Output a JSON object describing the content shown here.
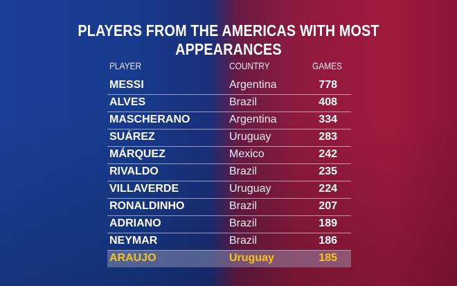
{
  "title": "PLAYERS FROM THE AMERICAS WITH MOST APPEARANCES",
  "colors": {
    "highlight": "#f5c518",
    "blue": "#1a3f96",
    "red": "#a01a3c"
  },
  "chart_data": {
    "type": "table",
    "title": "PLAYERS FROM THE AMERICAS WITH MOST APPEARANCES",
    "columns": [
      "PLAYER",
      "COUNTRY",
      "GAMES"
    ],
    "rows": [
      {
        "player": "MESSI",
        "country": "Argentina",
        "games": 778
      },
      {
        "player": "ALVES",
        "country": "Brazil",
        "games": 408
      },
      {
        "player": "MASCHERANO",
        "country": "Argentina",
        "games": 334
      },
      {
        "player": "SUÁREZ",
        "country": "Uruguay",
        "games": 283
      },
      {
        "player": "MÁRQUEZ",
        "country": "Mexico",
        "games": 242
      },
      {
        "player": "RIVALDO",
        "country": "Brazil",
        "games": 235
      },
      {
        "player": "VILLAVERDE",
        "country": "Uruguay",
        "games": 224
      },
      {
        "player": "RONALDINHO",
        "country": "Brazil",
        "games": 207
      },
      {
        "player": "ADRIANO",
        "country": "Brazil",
        "games": 189
      },
      {
        "player": "NEYMAR",
        "country": "Brazil",
        "games": 186
      },
      {
        "player": "ARAUJO",
        "country": "Uruguay",
        "games": 185,
        "highlighted": true
      }
    ]
  }
}
